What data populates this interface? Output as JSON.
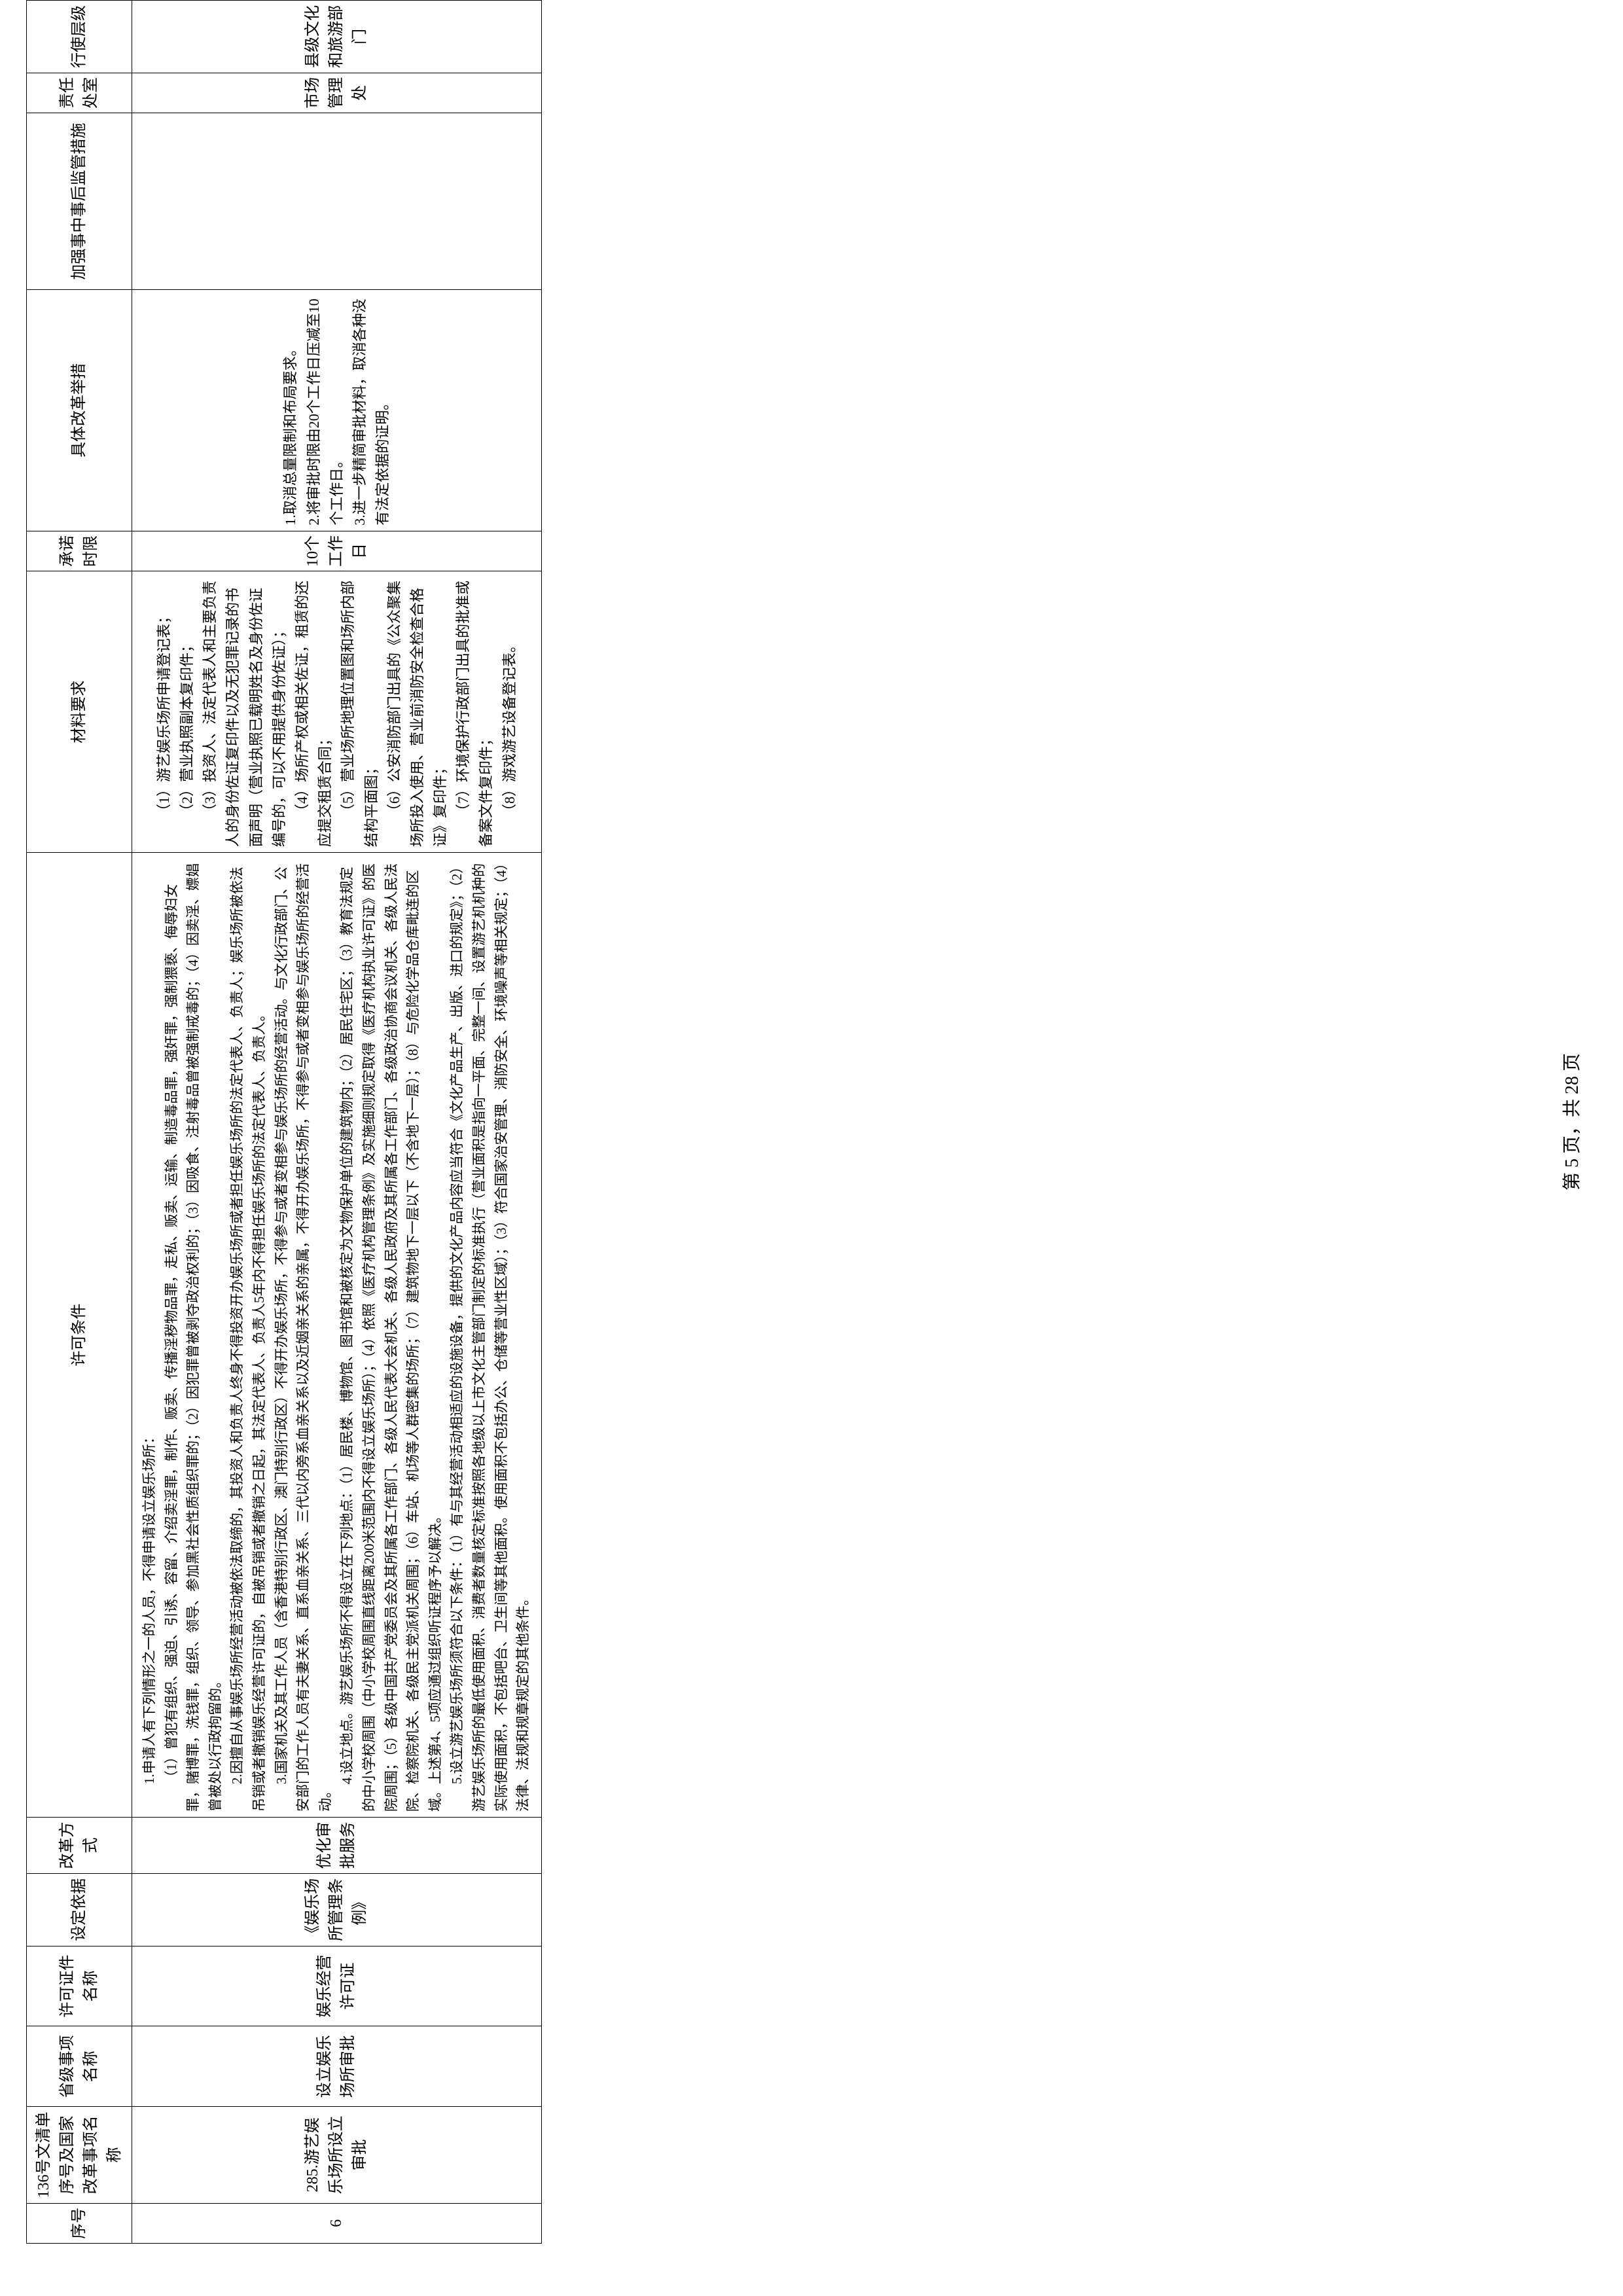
{
  "table": {
    "headers": {
      "seq": "序号",
      "item136": "136号文清单序号及国家改革事项名称",
      "provItem": "省级事项名称",
      "certName": "许可证件名称",
      "basis": "设定依据",
      "reformType": "改革方式",
      "conditions": "许可条件",
      "materials": "材料要求",
      "timeLimit": "承诺时限",
      "measures": "具体改革举措",
      "supervision": "加强事中事后监管措施",
      "dept": "责任处室",
      "level": "行使层级"
    },
    "row": {
      "seq": "6",
      "item136": "285.游艺娱乐场所设立审批",
      "provItem": "设立娱乐场所审批",
      "certName": "娱乐经营许可证",
      "basis": "《娱乐场所管理条例》",
      "reformType": "优化审批服务",
      "conditions_p1": "1.申请人有下列情形之一的人员，不得申请设立娱乐场所：",
      "conditions_p1a": "（1）曾犯有组织、强迫、引诱、容留、介绍卖淫罪，制作、贩卖、传播淫秽物品罪，走私、贩卖、运输、制造毒品罪，强奸罪，强制猥亵、侮辱妇女罪，赌博罪，洗钱罪，组织、领导、参加黑社会性质组织罪的；（2）因犯罪曾被剥夺政治权利的；（3）因吸食、注射毒品曾被强制戒毒的；（4）因卖淫、嫖娼曾被处以行政拘留的。",
      "conditions_p2": "2.因擅自从事娱乐场所经营活动被依法取缔的，其投资人和负责人终身不得投资开办娱乐场所或者担任娱乐场所的法定代表人、负责人；娱乐场所被依法吊销或者撤销娱乐经营许可证的，自被吊销或者撤销之日起，其法定代表人、负责人5年内不得担任娱乐场所的法定代表人、负责人。",
      "conditions_p3": "3.国家机关及其工作人员（含香港特别行政区、澳门特别行政区）不得开办娱乐场所，不得参与或者变相参与娱乐场所的经营活动。与文化行政部门、公安部门的工作人员有夫妻关系、直系血亲关系、三代以内旁系血亲关系以及近姻亲关系的亲属，不得开办娱乐场所，不得参与或者变相参与娱乐场所的经营活动。",
      "conditions_p4": "4.设立地点。游艺娱乐场所不得设立在下列地点：（1）居民楼、博物馆、图书馆和被核定为文物保护单位的建筑物内；（2）居民住宅区；（3）教育法规定的中小学校周围（中小学校周围直线距离200米范围内不得设立娱乐场所）；（4）依照《医疗机构管理条例》及实施细则规定取得《医疗机构执业许可证》的医院周围；（5）各级中国共产党委员会及其所属各工作部门、各级人民代表大会机关、各级人民政府及其所属各工作部门、各级政治协商会议机关、各级人民法院、检察院机关、各级民主党派机关周围；（6）车站、机场等人群密集的场所；（7）建筑物地下一层以下（不含地下一层）；（8）与危险化学品仓库毗连的区域。上述第4、5项应通过组织听证程序予以解决。",
      "conditions_p5": "5.设立游艺娱乐场所须符合以下条件：（1）有与其经营活动相适应的设施设备，提供的文化产品内容应当符合《文化产品生产、出版、进口的规定》；（2）游艺娱乐场所的最低使用面积、消费者数量核定标准按照各地级以上市文化主管部门制定的标准执行（营业面积是指向一平面、完整一间、设置游艺机机种的实际使用面积，不包括吧台、卫生间等其他面积。使用面积不包括办公、仓储等营业性区域）；（3）符合国家治安管理、消防安全、环境噪声等相关规定；（4）法律、法规和规章规定的其他条件。",
      "materials_m1": "（1）游艺娱乐场所申请登记表；",
      "materials_m2": "（2）营业执照副本复印件；",
      "materials_m3": "（3）投资人、法定代表人和主要负责人的身份佐证复印件以及无犯罪记录的书面声明（营业执照已载明姓名及身份佐证编号的，可以不用提供身份佐证）；",
      "materials_m4": "（4）场所产权或相关佐证，租赁的还应提交租赁合同；",
      "materials_m5": "（5）营业场所地理位置图和场所内部结构平面图；",
      "materials_m6": "（6）公安消防部门出具的《公众聚集场所投入使用、营业前消防安全检查合格证》复印件；",
      "materials_m7": "（7）环境保护行政部门出具的批准或备案文件复印件；",
      "materials_m8": "（8）游戏游艺设备登记表。",
      "timeLimit": "10个工作日",
      "measures_m1": "1.取消总量限制和布局要求。",
      "measures_m2": "2.将审批时限由20个工作日压减至10个工作日。",
      "measures_m3": "3.进一步精简审批材料，取消各种没有法定依据的证明。",
      "supervision": "",
      "dept": "市场管理处",
      "level": "县级文化和旅游部门"
    }
  },
  "footer": "第 5 页，共 28 页",
  "colors": {
    "border": "#000000",
    "background": "#ffffff",
    "text": "#000000"
  },
  "fonts": {
    "body_family": "SimSun",
    "cell_size": 24,
    "conditions_size": 21
  }
}
